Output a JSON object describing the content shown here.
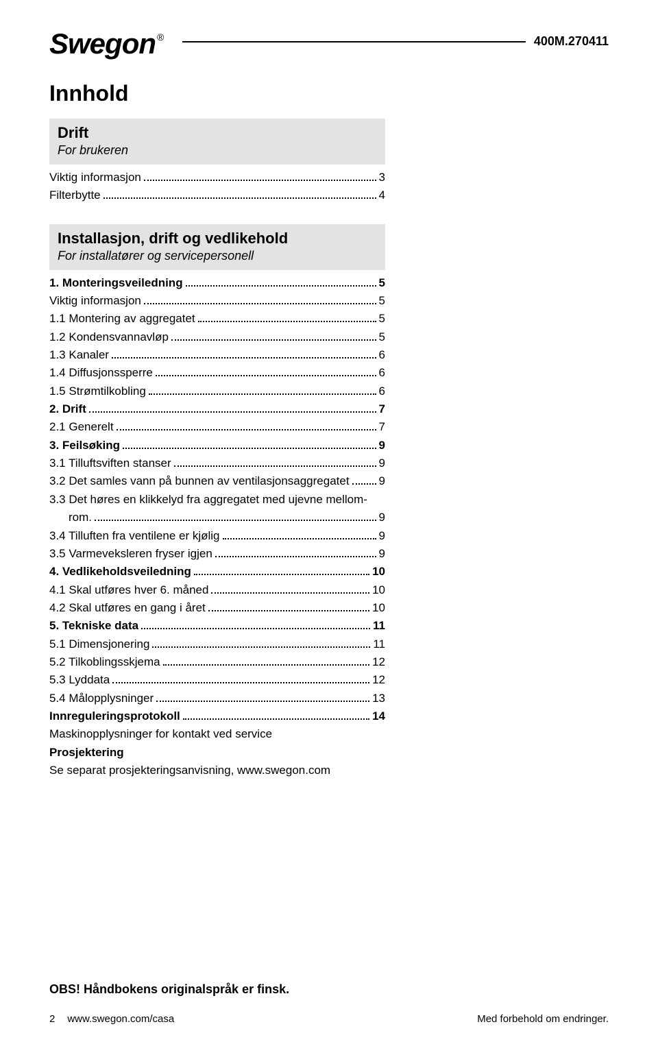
{
  "header": {
    "logo_text": "Swegon",
    "logo_reg": "®",
    "doc_code": "400M.270411"
  },
  "title": "Innhold",
  "sections": [
    {
      "box": {
        "title": "Drift",
        "subtitle": "For brukeren"
      },
      "items": [
        {
          "label": "Viktig informasjon",
          "page": "3",
          "bold": false
        },
        {
          "label": "Filterbytte",
          "page": "4",
          "bold": false
        }
      ]
    },
    {
      "box": {
        "title": "Installasjon, drift og vedlikehold",
        "subtitle": "For installatører og servicepersonell"
      },
      "items": [
        {
          "label": "1. Monteringsveiledning",
          "page": "5",
          "bold": true
        },
        {
          "label": "Viktig informasjon",
          "page": "5",
          "bold": false
        },
        {
          "label": "1.1 Montering av aggregatet",
          "page": "5",
          "bold": false
        },
        {
          "label": "1.2 Kondensvannavløp",
          "page": "5",
          "bold": false
        },
        {
          "label": "1.3 Kanaler",
          "page": "6",
          "bold": false
        },
        {
          "label": "1.4 Diffusjonssperre",
          "page": "6",
          "bold": false
        },
        {
          "label": "1.5 Strømtilkobling",
          "page": "6",
          "bold": false
        },
        {
          "label": "2. Drift",
          "page": "7",
          "bold": true
        },
        {
          "label": "2.1 Generelt",
          "page": "7",
          "bold": false
        },
        {
          "label": "3. Feilsøking",
          "page": "9",
          "bold": true
        },
        {
          "label": "3.1 Tilluftsviften stanser",
          "page": "9",
          "bold": false
        },
        {
          "label": "3.2 Det samles vann på bunnen av ventilasjonsaggregatet",
          "page": "9",
          "bold": false
        },
        {
          "label": "3.3 Det høres en klikkelyd fra aggregatet med ujevne mellom-",
          "nopage": true,
          "bold": false
        },
        {
          "label": "rom.",
          "page": "9",
          "bold": false,
          "indent": true
        },
        {
          "label": "3.4 Tilluften fra ventilene er kjølig",
          "page": "9",
          "bold": false
        },
        {
          "label": "3.5 Varmeveksleren fryser igjen",
          "page": "9",
          "bold": false
        },
        {
          "label": "4. Vedlikeholdsveiledning",
          "page": "10",
          "bold": true
        },
        {
          "label": "4.1 Skal utføres hver 6. måned",
          "page": "10",
          "bold": false
        },
        {
          "label": "4.2 Skal utføres en gang i året",
          "page": "10",
          "bold": false
        },
        {
          "label": "5. Tekniske data",
          "page": "11",
          "bold": true
        },
        {
          "label": "5.1 Dimensjonering",
          "page": "11",
          "bold": false
        },
        {
          "label": "5.2 Tilkoblingsskjema",
          "page": "12",
          "bold": false
        },
        {
          "label": "5.3 Lyddata",
          "page": "12",
          "bold": false
        },
        {
          "label": "5.4 Målopplysninger",
          "page": "13",
          "bold": false
        },
        {
          "label": "Innreguleringsprotokoll",
          "page": "14",
          "bold": true
        }
      ],
      "trailing": [
        {
          "text": "Maskinopplysninger for kontakt ved service",
          "bold": false
        },
        {
          "text": "Prosjektering",
          "bold": true
        },
        {
          "text": "Se separat prosjekteringsanvisning, www.swegon.com",
          "bold": false
        }
      ]
    }
  ],
  "footer": {
    "note": "OBS! Håndbokens originalspråk er finsk.",
    "page_num": "2",
    "url": "www.swegon.com/casa",
    "right": "Med forbehold om endringer."
  }
}
